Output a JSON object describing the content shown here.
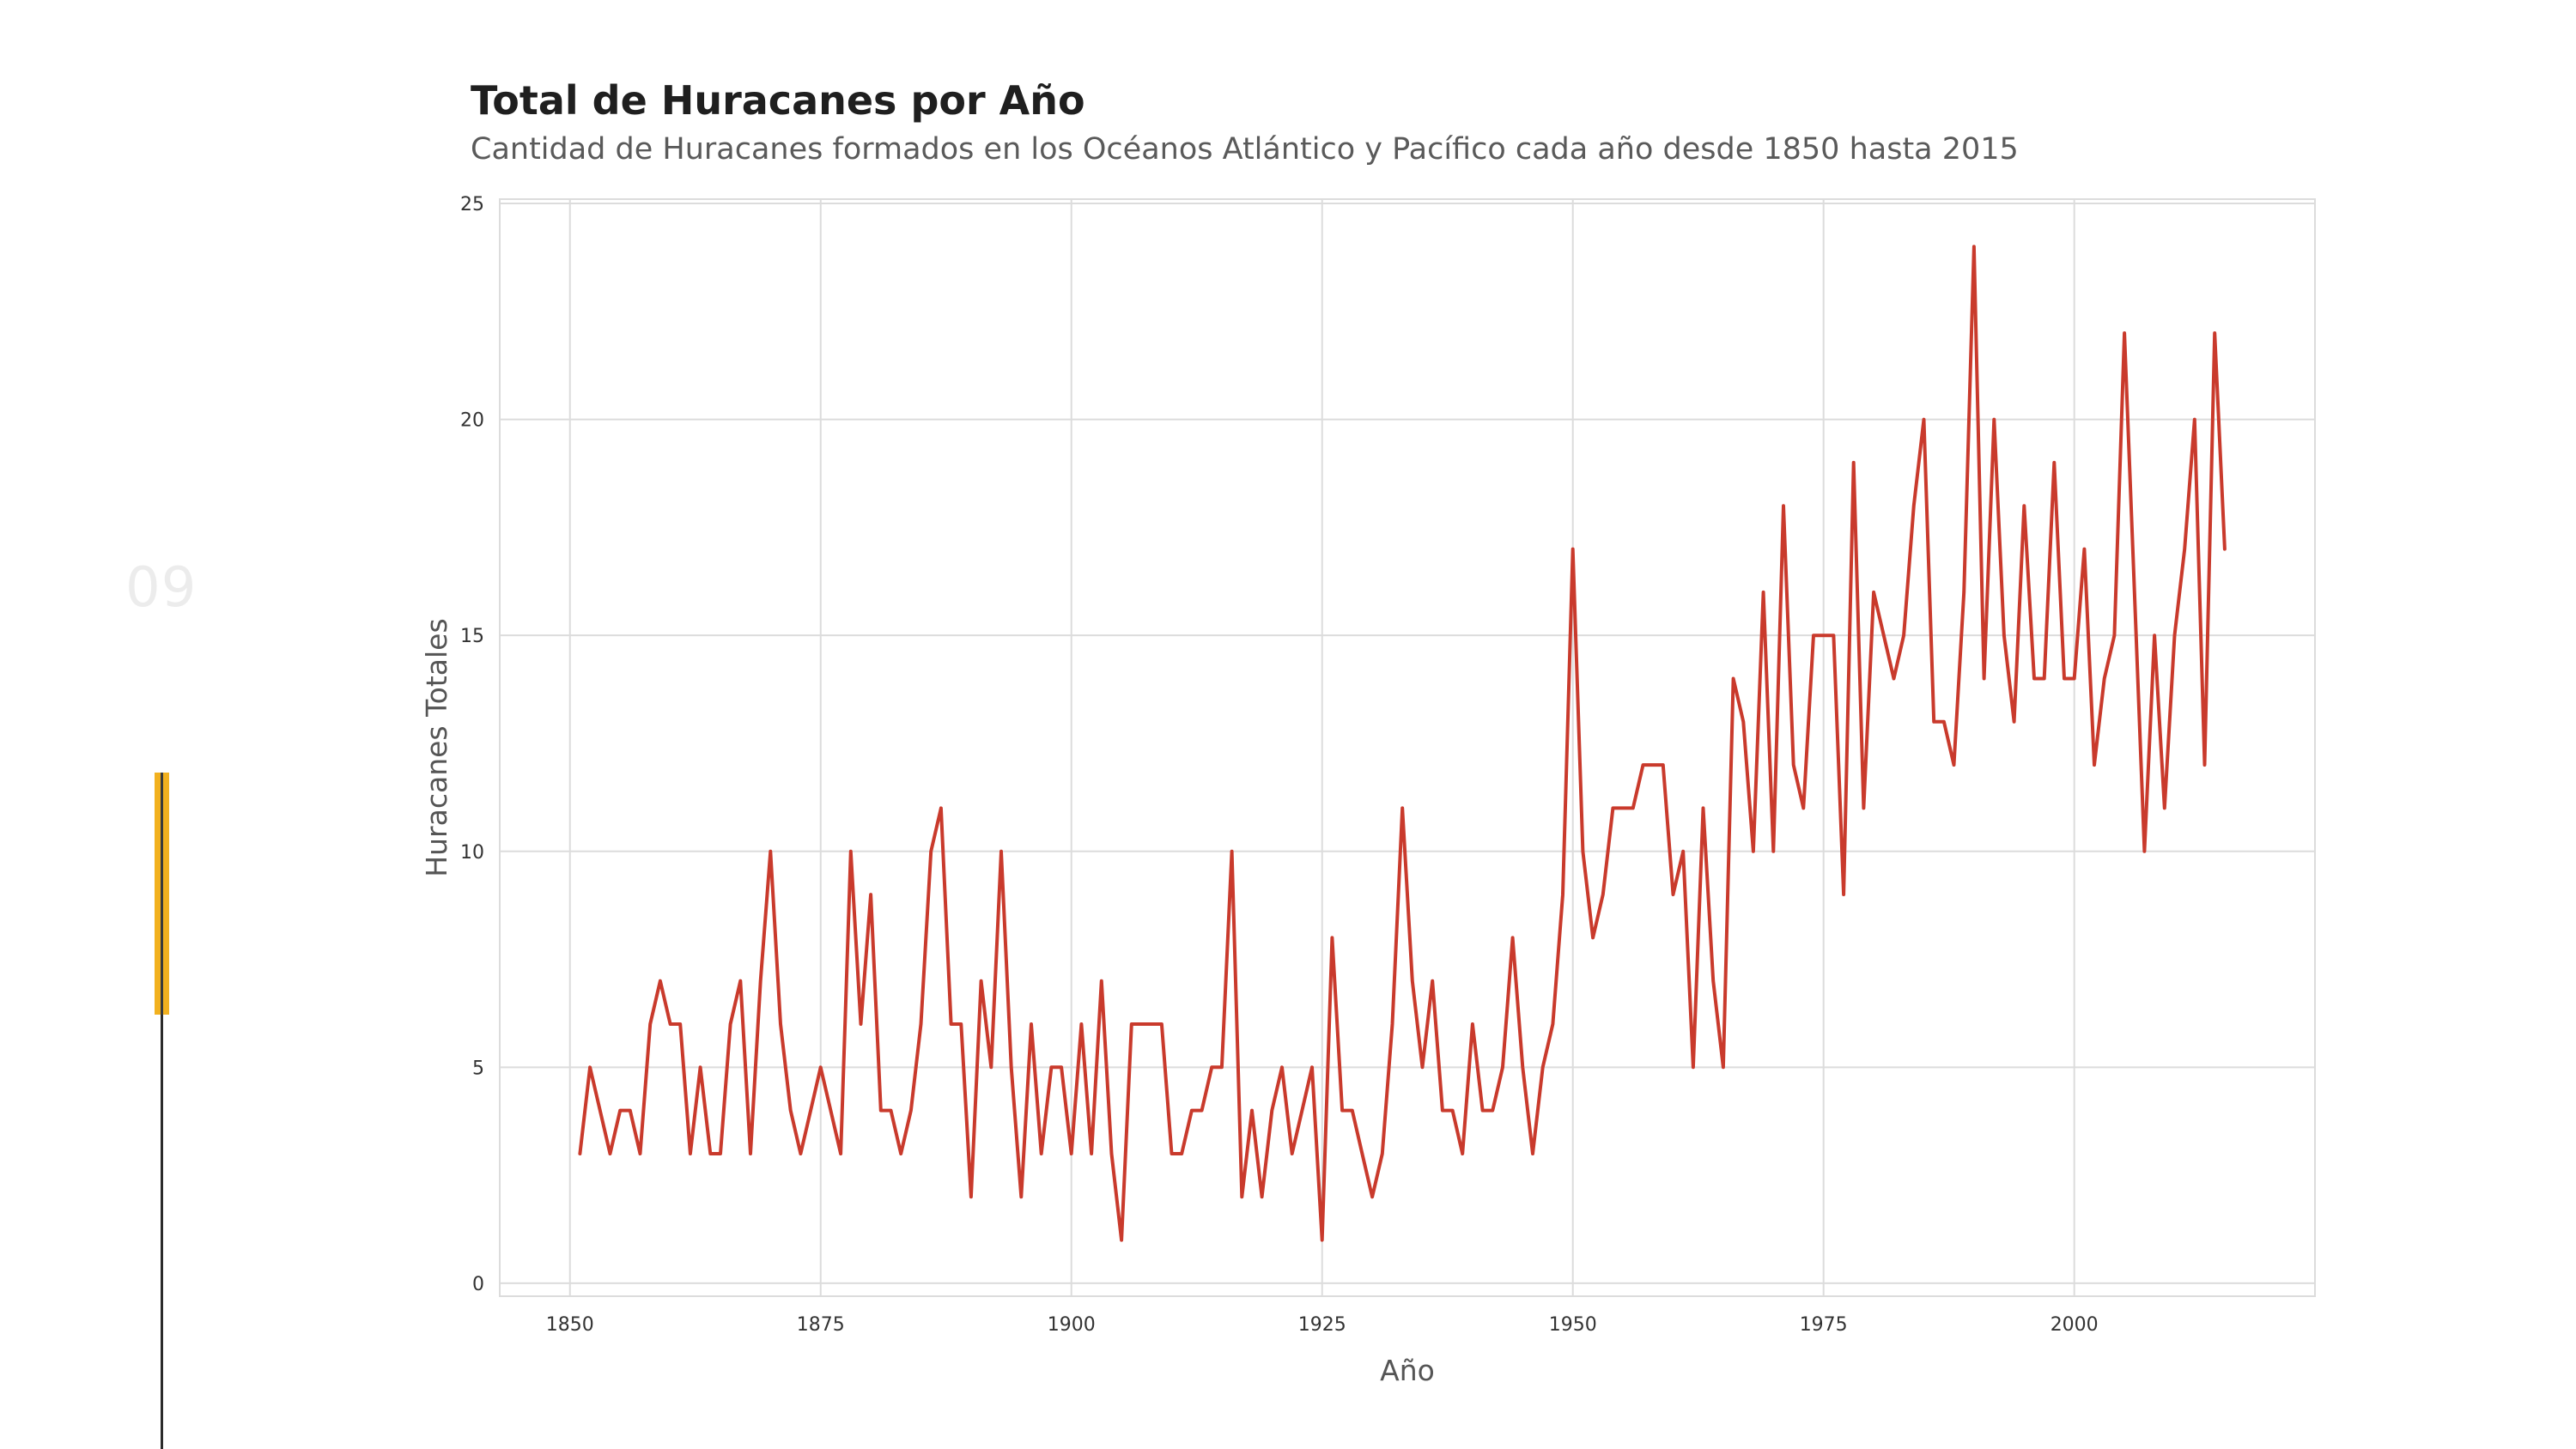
{
  "slide": {
    "number": "09"
  },
  "colors": {
    "line": "#c93a2c",
    "accent": "#f2b11f",
    "grid": "#dcdcdc"
  },
  "chart_data": {
    "type": "line",
    "title": "Total de Huracanes por Año",
    "subtitle": "Cantidad de Huracanes formados en los Océanos Atlántico y Pacífico cada año desde 1850 hasta 2015",
    "xlabel": "Año",
    "ylabel": "Huracanes Totales",
    "xlim": [
      1843,
      2024
    ],
    "ylim": [
      -0.3,
      25.1
    ],
    "xticks": [
      1850,
      1875,
      1900,
      1925,
      1950,
      1975,
      2000
    ],
    "yticks": [
      0,
      5,
      10,
      15,
      20,
      25
    ],
    "grid": true,
    "series": [
      {
        "x": [
          1851,
          1852,
          1853,
          1854,
          1855,
          1856,
          1857,
          1858,
          1859,
          1860,
          1861,
          1862,
          1863,
          1864,
          1865,
          1866,
          1867,
          1868,
          1869,
          1870,
          1871,
          1872,
          1873,
          1874,
          1875,
          1876,
          1877,
          1878,
          1879,
          1880,
          1881,
          1882,
          1883,
          1884,
          1885,
          1886,
          1887,
          1888,
          1889,
          1890,
          1891,
          1892,
          1893,
          1894,
          1895,
          1896,
          1897,
          1898,
          1899,
          1900,
          1901,
          1902,
          1903,
          1904,
          1905,
          1906,
          1907,
          1908,
          1909,
          1910,
          1911,
          1912,
          1913,
          1914,
          1915,
          1916,
          1917,
          1918,
          1919,
          1920,
          1921,
          1922,
          1923,
          1924,
          1925,
          1926,
          1927,
          1928,
          1929,
          1930,
          1931,
          1932,
          1933,
          1934,
          1935,
          1936,
          1937,
          1938,
          1939,
          1940,
          1941,
          1942,
          1943,
          1944,
          1945,
          1946,
          1947,
          1948,
          1949,
          1950,
          1951,
          1952,
          1953,
          1954,
          1955,
          1956,
          1957,
          1958,
          1959,
          1960,
          1961,
          1962,
          1963,
          1964,
          1965,
          1966,
          1967,
          1968,
          1969,
          1970,
          1971,
          1972,
          1973,
          1974,
          1975,
          1976,
          1977,
          1978,
          1979,
          1980,
          1981,
          1982,
          1983,
          1984,
          1985,
          1986,
          1987,
          1988,
          1989,
          1990,
          1991,
          1992,
          1993,
          1994,
          1995,
          1996,
          1997,
          1998,
          1999,
          2000,
          2001,
          2002,
          2003,
          2004,
          2005,
          2006,
          2007,
          2008,
          2009,
          2010,
          2011,
          2012,
          2013,
          2014,
          2015
        ],
        "values": [
          3,
          5,
          4,
          3,
          4,
          4,
          3,
          6,
          7,
          6,
          6,
          3,
          5,
          3,
          3,
          6,
          7,
          3,
          7,
          10,
          6,
          4,
          3,
          4,
          5,
          4,
          3,
          10,
          6,
          9,
          4,
          4,
          3,
          4,
          6,
          10,
          11,
          6,
          6,
          2,
          7,
          5,
          10,
          5,
          2,
          6,
          3,
          5,
          5,
          3,
          6,
          3,
          7,
          3,
          1,
          6,
          6,
          6,
          6,
          3,
          3,
          4,
          4,
          5,
          5,
          10,
          2,
          4,
          2,
          4,
          5,
          3,
          4,
          5,
          1,
          8,
          4,
          4,
          3,
          2,
          3,
          6,
          11,
          7,
          5,
          7,
          4,
          4,
          3,
          6,
          4,
          4,
          5,
          8,
          5,
          3,
          5,
          6,
          9,
          17,
          10,
          8,
          9,
          11,
          11,
          11,
          12,
          12,
          12,
          9,
          10,
          5,
          11,
          7,
          5,
          14,
          13,
          10,
          16,
          10,
          18,
          12,
          11,
          15,
          15,
          15,
          9,
          19,
          11,
          16,
          15,
          14,
          15,
          18,
          20,
          13,
          13,
          12,
          16,
          24,
          14,
          20,
          15,
          13,
          18,
          14,
          14,
          19,
          14,
          14,
          17,
          12,
          14,
          15,
          22,
          16,
          10,
          15,
          11,
          15,
          17,
          20,
          12,
          22,
          17
        ]
      }
    ]
  }
}
